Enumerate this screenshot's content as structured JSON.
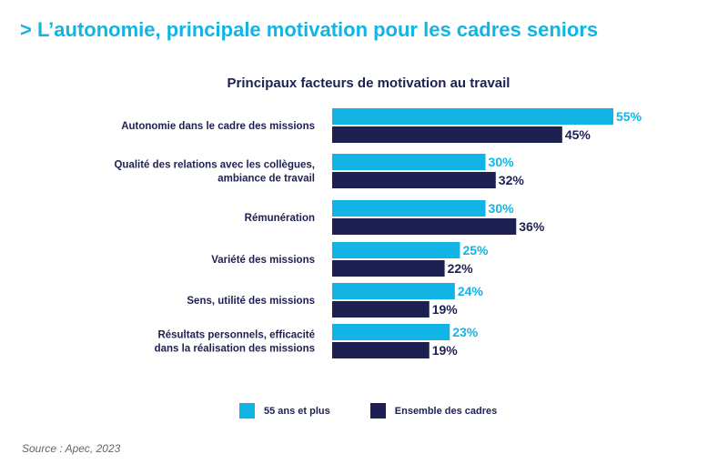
{
  "header": {
    "title": "> L’autonomie, principale motivation pour les cadres seniors"
  },
  "source": "Source : Apec, 2023",
  "colors": {
    "accent": "#12b4e6",
    "dark": "#1d2152"
  },
  "chart_data": {
    "type": "bar",
    "orientation": "horizontal",
    "title": "Principaux facteurs de motivation au travail",
    "categories": [
      [
        "Autonomie dans le cadre des missions"
      ],
      [
        "Qualité des relations avec les collègues,",
        "ambiance de travail"
      ],
      [
        "Rémunération"
      ],
      [
        "Variété des missions"
      ],
      [
        "Sens, utilité des missions"
      ],
      [
        "Résultats personnels, efficacité",
        "dans la réalisation des missions"
      ]
    ],
    "series": [
      {
        "name": "55 ans et plus",
        "color": "#12b4e6",
        "values": [
          55,
          30,
          30,
          25,
          24,
          23
        ],
        "labels": [
          "55%",
          "30%",
          "30%",
          "25%",
          "24%",
          "23%"
        ]
      },
      {
        "name": "Ensemble des cadres",
        "color": "#1d2152",
        "values": [
          45,
          32,
          36,
          22,
          19,
          19
        ],
        "labels": [
          "45%",
          "32%",
          "36%",
          "22%",
          "19%",
          "19%"
        ]
      }
    ],
    "xlim": [
      0,
      55
    ],
    "grid": false,
    "legend_position": "bottom"
  }
}
